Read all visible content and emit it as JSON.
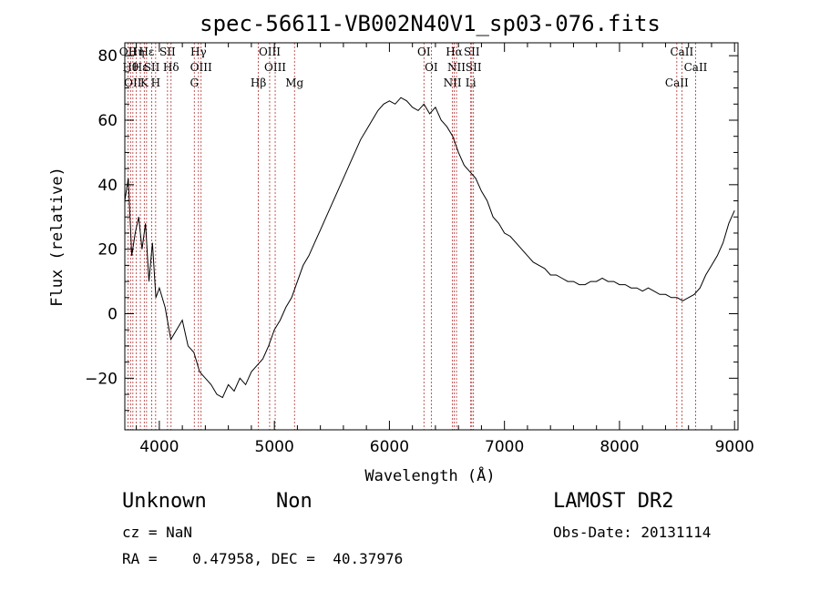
{
  "chart_data": {
    "type": "line",
    "title": "spec-56611-VB002N40V1_sp03-076.fits",
    "xlabel": "Wavelength (Å)",
    "ylabel": "Flux (relative)",
    "xlim": [
      3700,
      9030
    ],
    "ylim": [
      -36,
      84
    ],
    "xticks": [
      4000,
      5000,
      6000,
      7000,
      8000,
      9000
    ],
    "yticks": [
      -20,
      0,
      20,
      40,
      60,
      80
    ],
    "line_color": "#000000",
    "marker_color": "#b03030",
    "series": [
      {
        "x": [
          3700,
          3730,
          3760,
          3790,
          3820,
          3850,
          3880,
          3910,
          3940,
          3970,
          4000,
          4050,
          4100,
          4150,
          4200,
          4250,
          4300,
          4350,
          4400,
          4450,
          4500,
          4550,
          4600,
          4650,
          4700,
          4750,
          4800,
          4850,
          4900,
          4950,
          5000,
          5050,
          5100,
          5150,
          5200,
          5250,
          5300,
          5350,
          5400,
          5450,
          5500,
          5550,
          5600,
          5650,
          5700,
          5750,
          5800,
          5850,
          5900,
          5950,
          6000,
          6050,
          6100,
          6150,
          6200,
          6250,
          6300,
          6350,
          6400,
          6450,
          6500,
          6550,
          6600,
          6650,
          6700,
          6750,
          6800,
          6850,
          6900,
          6950,
          7000,
          7050,
          7100,
          7150,
          7200,
          7250,
          7300,
          7350,
          7400,
          7450,
          7500,
          7550,
          7600,
          7650,
          7700,
          7750,
          7800,
          7850,
          7900,
          7950,
          8000,
          8050,
          8100,
          8150,
          8200,
          8250,
          8300,
          8350,
          8400,
          8450,
          8500,
          8550,
          8600,
          8650,
          8700,
          8750,
          8800,
          8850,
          8900,
          8950,
          9000
        ],
        "y": [
          35,
          42,
          18,
          25,
          30,
          20,
          28,
          10,
          22,
          5,
          8,
          2,
          -8,
          -5,
          -2,
          -10,
          -12,
          -18,
          -20,
          -22,
          -25,
          -26,
          -22,
          -24,
          -20,
          -22,
          -18,
          -16,
          -14,
          -10,
          -5,
          -2,
          2,
          5,
          10,
          15,
          18,
          22,
          26,
          30,
          34,
          38,
          42,
          46,
          50,
          54,
          57,
          60,
          63,
          65,
          66,
          65,
          67,
          66,
          64,
          63,
          65,
          62,
          64,
          60,
          58,
          55,
          50,
          46,
          44,
          42,
          38,
          35,
          30,
          28,
          25,
          24,
          22,
          20,
          18,
          16,
          15,
          14,
          12,
          12,
          11,
          10,
          10,
          9,
          9,
          10,
          10,
          11,
          10,
          10,
          9,
          9,
          8,
          8,
          7,
          8,
          7,
          6,
          6,
          5,
          5,
          4,
          5,
          6,
          8,
          12,
          15,
          18,
          22,
          28,
          32
        ]
      }
    ],
    "line_markers": [
      {
        "wl": 3727,
        "label": "OII"
      },
      {
        "wl": 3750,
        "label": "Hθ"
      },
      {
        "wl": 3770,
        "label": "OII"
      },
      {
        "wl": 3800,
        "label": "Hη"
      },
      {
        "wl": 3835,
        "label": "Hε"
      },
      {
        "wl": 3869,
        "label": "K"
      },
      {
        "wl": 3889,
        "label": "Hε"
      },
      {
        "wl": 3934,
        "label": "SII"
      },
      {
        "wl": 3968,
        "label": "H"
      },
      {
        "wl": 4071,
        "label": "SII"
      },
      {
        "wl": 4102,
        "label": "Hδ"
      },
      {
        "wl": 4304,
        "label": "G"
      },
      {
        "wl": 4340,
        "label": "Hγ"
      },
      {
        "wl": 4363,
        "label": "OIII"
      },
      {
        "wl": 4861,
        "label": "Hβ"
      },
      {
        "wl": 4959,
        "label": "OIII"
      },
      {
        "wl": 5007,
        "label": "OIII"
      },
      {
        "wl": 5175,
        "label": "Mg"
      },
      {
        "wl": 6300,
        "label": "OI"
      },
      {
        "wl": 6364,
        "label": "OI"
      },
      {
        "wl": 6548,
        "label": "NII"
      },
      {
        "wl": 6563,
        "label": "Hα"
      },
      {
        "wl": 6583,
        "label": "NII"
      },
      {
        "wl": 6707,
        "label": "Li"
      },
      {
        "wl": 6716,
        "label": "SII"
      },
      {
        "wl": 6731,
        "label": "SII"
      },
      {
        "wl": 8498,
        "label": "CaII"
      },
      {
        "wl": 8542,
        "label": "CaII"
      },
      {
        "wl": 8662,
        "label": "CaII"
      }
    ]
  },
  "info": {
    "class": "Unknown",
    "subclass": "Non",
    "survey": "LAMOST DR2",
    "cz": "cz = NaN",
    "obs_date": "Obs-Date: 20131114",
    "coords": "RA =    0.47958, DEC =  40.37976"
  }
}
